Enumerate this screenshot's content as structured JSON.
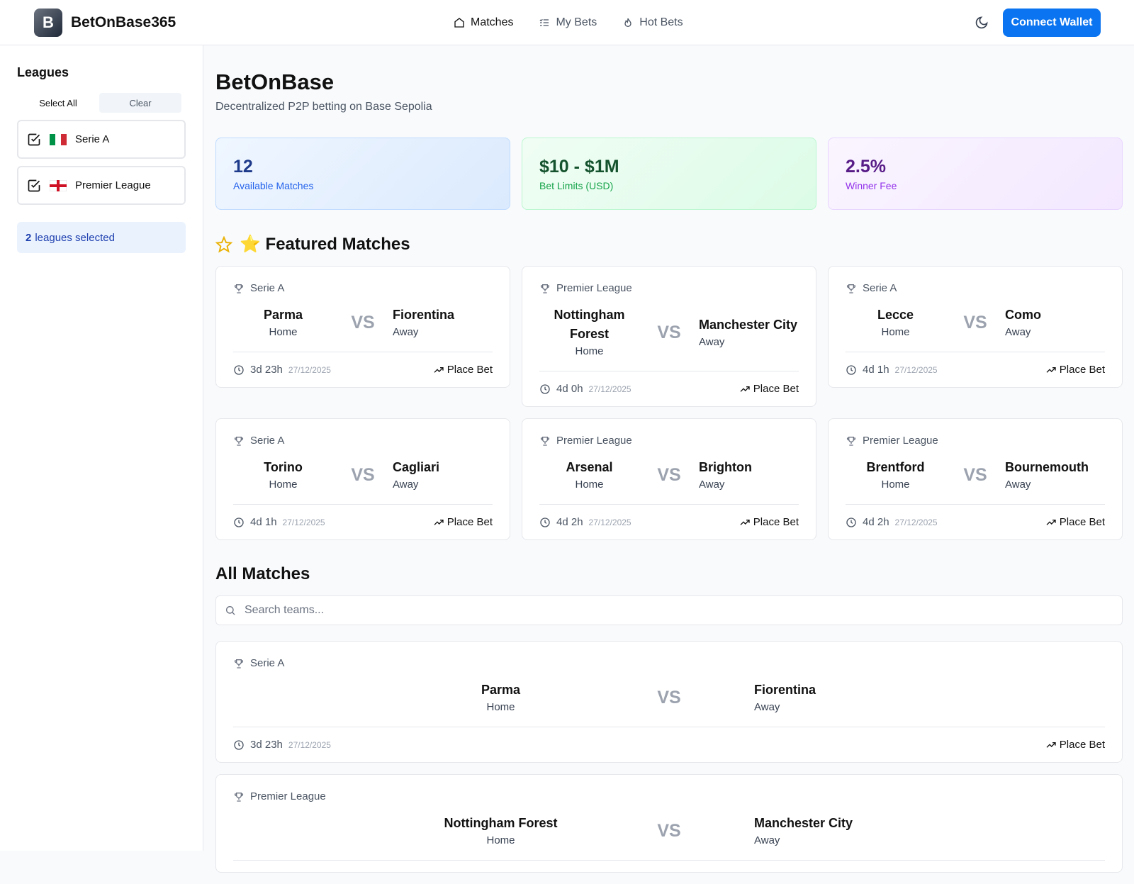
{
  "header": {
    "brand": "BetOnBase365",
    "nav": [
      "Matches",
      "My Bets",
      "Hot Bets"
    ],
    "connect": "Connect Wallet"
  },
  "sidebar": {
    "title": "Leagues",
    "select_all": "Select All",
    "clear": "Clear",
    "leagues": [
      "Serie A",
      "Premier League"
    ],
    "selected_count": 2,
    "selected_text": "leagues selected"
  },
  "main": {
    "title": "BetOnBase",
    "subtitle": "Decentralized P2P betting on Base Sepolia",
    "stats": [
      {
        "value": 12,
        "label": "Available Matches"
      },
      {
        "value": "$10 - $1M",
        "label": "Bet Limits (USD)"
      },
      {
        "value": "2.5%",
        "label": "Winner Fee"
      }
    ],
    "labels": {
      "home": "Home",
      "away": "Away",
      "vs": "VS",
      "action": "Place Bet"
    },
    "featured_title": "⭐ Featured Matches",
    "featured": [
      {
        "league": "Serie A",
        "home": "Parma",
        "away": "Fiorentina",
        "countdown": "3d 23h",
        "date": "27/12/2025"
      },
      {
        "league": "Premier League",
        "home": "Nottingham Forest",
        "away": "Manchester City",
        "countdown": "4d 0h",
        "date": "27/12/2025"
      },
      {
        "league": "Serie A",
        "home": "Lecce",
        "away": "Como",
        "countdown": "4d 1h",
        "date": "27/12/2025"
      },
      {
        "league": "Serie A",
        "home": "Torino",
        "away": "Cagliari",
        "countdown": "4d 1h",
        "date": "27/12/2025"
      },
      {
        "league": "Premier League",
        "home": "Arsenal",
        "away": "Brighton",
        "countdown": "4d 2h",
        "date": "27/12/2025"
      },
      {
        "league": "Premier League",
        "home": "Brentford",
        "away": "Bournemouth",
        "countdown": "4d 2h",
        "date": "27/12/2025"
      }
    ],
    "all_title": "All Matches",
    "search_placeholder": "Search teams...",
    "all_matches": [
      {
        "league": "Serie A",
        "home": "Parma",
        "away": "Fiorentina",
        "countdown": "3d 23h",
        "date": "27/12/2025"
      },
      {
        "league": "Premier League",
        "home": "Nottingham Forest",
        "away": "Manchester City"
      }
    ]
  }
}
